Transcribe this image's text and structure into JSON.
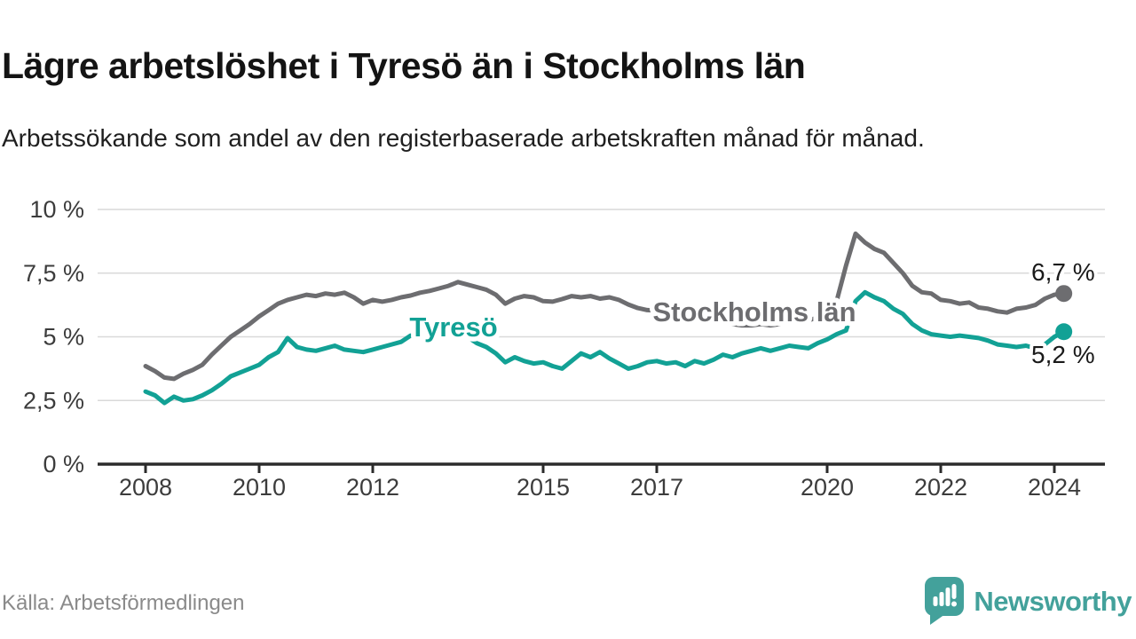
{
  "header": {
    "title": "Lägre arbetslöshet i Tyresö än i Stockholms län",
    "subtitle": "Arbetssökande som andel av den registerbaserade arbetskraften månad för månad."
  },
  "footer": {
    "source": "Källa: Arbetsförmedlingen",
    "logo_text": "Newsworthy",
    "logo_icon": "bar-chart-speech-bubble-icon"
  },
  "colors": {
    "tyreso": "#12a195",
    "stockholm": "#6d6d70",
    "grid": "#d9d9d9",
    "axis": "#2b2b2b",
    "tick_label": "#3c3c3c",
    "value_label": "#1a1a1a",
    "source_text": "#8a8a8a",
    "logo": "#43a19b",
    "background": "#ffffff"
  },
  "chart_data": {
    "type": "line",
    "title": "Lägre arbetslöshet i Tyresö än i Stockholms län",
    "xlabel": "",
    "ylabel": "Arbetssökande som andel av den registerbaserade arbetskraften",
    "unit": "%",
    "x_start_year": 2008,
    "x_points_per_year": 6,
    "x_end_year_approx": 2024.17,
    "ylim": [
      0,
      10
    ],
    "grid": true,
    "legend_position": "inline-labels",
    "y_ticks": [
      {
        "value": 0,
        "label": "0 %"
      },
      {
        "value": 2.5,
        "label": "2,5 %"
      },
      {
        "value": 5,
        "label": "5 %"
      },
      {
        "value": 7.5,
        "label": "7,5 %"
      },
      {
        "value": 10,
        "label": "10 %"
      }
    ],
    "x_ticks": [
      {
        "year": 2008,
        "label": "2008"
      },
      {
        "year": 2010,
        "label": "2010"
      },
      {
        "year": 2012,
        "label": "2012"
      },
      {
        "year": 2015,
        "label": "2015"
      },
      {
        "year": 2017,
        "label": "2017"
      },
      {
        "year": 2020,
        "label": "2020"
      },
      {
        "year": 2022,
        "label": "2022"
      },
      {
        "year": 2024,
        "label": "2024"
      }
    ],
    "series": [
      {
        "name": "Stockholms län",
        "color_key": "stockholm",
        "end_label": "6,7 %",
        "end_value": 6.7,
        "values": [
          3.85,
          3.65,
          3.4,
          3.35,
          3.55,
          3.7,
          3.9,
          4.3,
          4.65,
          5.0,
          5.25,
          5.5,
          5.8,
          6.05,
          6.3,
          6.45,
          6.55,
          6.65,
          6.6,
          6.7,
          6.65,
          6.73,
          6.55,
          6.3,
          6.45,
          6.38,
          6.45,
          6.55,
          6.62,
          6.73,
          6.8,
          6.9,
          7.0,
          7.15,
          7.05,
          6.95,
          6.85,
          6.65,
          6.3,
          6.5,
          6.6,
          6.55,
          6.4,
          6.38,
          6.48,
          6.6,
          6.55,
          6.6,
          6.5,
          6.55,
          6.45,
          6.27,
          6.13,
          6.05,
          6.03,
          5.95,
          5.88,
          5.8,
          5.72,
          5.65,
          5.6,
          5.55,
          5.5,
          5.45,
          5.45,
          5.5,
          5.45,
          5.5,
          5.55,
          5.6,
          5.65,
          5.75,
          5.9,
          6.4,
          7.8,
          9.05,
          8.7,
          8.45,
          8.3,
          7.9,
          7.5,
          7.0,
          6.75,
          6.7,
          6.45,
          6.4,
          6.3,
          6.35,
          6.15,
          6.1,
          6.0,
          5.95,
          6.1,
          6.15,
          6.25,
          6.5,
          6.65,
          6.7
        ]
      },
      {
        "name": "Tyresö",
        "color_key": "tyreso",
        "end_label": "5,2 %",
        "end_value": 5.2,
        "values": [
          2.85,
          2.7,
          2.4,
          2.65,
          2.5,
          2.55,
          2.7,
          2.9,
          3.15,
          3.45,
          3.6,
          3.75,
          3.9,
          4.2,
          4.4,
          4.95,
          4.6,
          4.5,
          4.45,
          4.55,
          4.65,
          4.5,
          4.45,
          4.4,
          4.5,
          4.6,
          4.7,
          4.8,
          5.05,
          4.95,
          5.05,
          5.15,
          5.3,
          5.2,
          5.0,
          4.75,
          4.6,
          4.35,
          4.0,
          4.2,
          4.05,
          3.95,
          4.0,
          3.85,
          3.75,
          4.05,
          4.35,
          4.2,
          4.4,
          4.15,
          3.95,
          3.75,
          3.85,
          4.0,
          4.05,
          3.95,
          4.0,
          3.85,
          4.05,
          3.95,
          4.1,
          4.3,
          4.2,
          4.35,
          4.45,
          4.55,
          4.45,
          4.55,
          4.65,
          4.6,
          4.55,
          4.75,
          4.9,
          5.1,
          5.25,
          6.4,
          6.75,
          6.55,
          6.4,
          6.1,
          5.9,
          5.5,
          5.25,
          5.1,
          5.05,
          5.0,
          5.05,
          5.0,
          4.95,
          4.85,
          4.7,
          4.65,
          4.6,
          4.65,
          4.55,
          4.7,
          5.0,
          5.2
        ]
      }
    ]
  }
}
